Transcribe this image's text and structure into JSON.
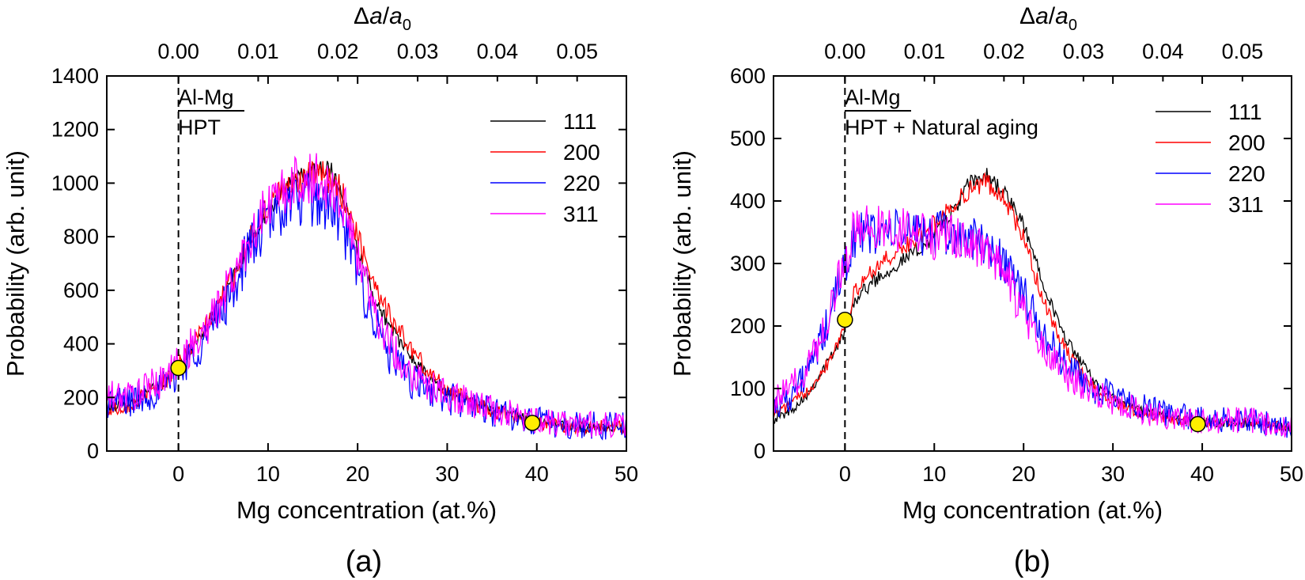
{
  "chart_data": [
    {
      "type": "line",
      "panel_label": "(a)",
      "xlabel": "Mg concentration (at.%)",
      "ylabel": "Probability (arb. unit)",
      "top_xlabel": "Δa/a0",
      "top_xlabel_parts": {
        "delta": "Δ",
        "a": "a",
        "slash": "/",
        "a0": "a",
        "sub": "0"
      },
      "xlim": [
        -8,
        50
      ],
      "ylim": [
        0,
        1400
      ],
      "xticks": [
        0,
        10,
        20,
        30,
        40,
        50
      ],
      "xtick_labels": [
        "0",
        "10",
        "20",
        "30",
        "40",
        "50"
      ],
      "yticks": [
        0,
        200,
        400,
        600,
        800,
        1000,
        1200,
        1400
      ],
      "ytick_labels": [
        "0",
        "200",
        "400",
        "600",
        "800",
        "1000",
        "1200",
        "1400"
      ],
      "top_xticks": [
        0.0,
        8.9,
        17.8,
        26.7,
        35.6,
        44.5
      ],
      "top_xtick_labels": [
        "0.00",
        "0.01",
        "0.02",
        "0.03",
        "0.04",
        "0.05"
      ],
      "annotation_title": "Al-Mg",
      "annotation_sub": "HPT",
      "dashed_line_x": 0,
      "markers": [
        {
          "x": 0,
          "y": 310
        },
        {
          "x": 39.5,
          "y": 105
        }
      ],
      "legend_position": "top-right",
      "series": [
        {
          "name": "111",
          "color": "#000000",
          "noise": 25,
          "points": [
            [
              -8,
              160
            ],
            [
              -5,
              185
            ],
            [
              -2,
              250
            ],
            [
              0,
              320
            ],
            [
              3,
              450
            ],
            [
              6,
              640
            ],
            [
              8,
              780
            ],
            [
              10,
              900
            ],
            [
              12,
              990
            ],
            [
              14,
              1030
            ],
            [
              16,
              1060
            ],
            [
              17,
              1050
            ],
            [
              18,
              980
            ],
            [
              19,
              880
            ],
            [
              20,
              760
            ],
            [
              22,
              560
            ],
            [
              24,
              440
            ],
            [
              26,
              350
            ],
            [
              28,
              270
            ],
            [
              30,
              220
            ],
            [
              33,
              180
            ],
            [
              36,
              150
            ],
            [
              40,
              110
            ],
            [
              45,
              85
            ],
            [
              50,
              85
            ]
          ]
        },
        {
          "name": "200",
          "color": "#ff0000",
          "noise": 40,
          "points": [
            [
              -8,
              150
            ],
            [
              -5,
              180
            ],
            [
              -2,
              250
            ],
            [
              0,
              320
            ],
            [
              3,
              460
            ],
            [
              6,
              640
            ],
            [
              8,
              800
            ],
            [
              10,
              910
            ],
            [
              12,
              980
            ],
            [
              14,
              1020
            ],
            [
              16,
              1030
            ],
            [
              18,
              980
            ],
            [
              19,
              900
            ],
            [
              20,
              800
            ],
            [
              22,
              620
            ],
            [
              24,
              480
            ],
            [
              26,
              380
            ],
            [
              28,
              290
            ],
            [
              30,
              230
            ],
            [
              33,
              175
            ],
            [
              36,
              140
            ],
            [
              40,
              105
            ],
            [
              45,
              90
            ],
            [
              50,
              90
            ]
          ]
        },
        {
          "name": "220",
          "color": "#0000ff",
          "noise": 80,
          "points": [
            [
              -8,
              180
            ],
            [
              -5,
              190
            ],
            [
              -2,
              230
            ],
            [
              0,
              300
            ],
            [
              3,
              420
            ],
            [
              6,
              600
            ],
            [
              8,
              760
            ],
            [
              10,
              860
            ],
            [
              12,
              920
            ],
            [
              14,
              940
            ],
            [
              16,
              930
            ],
            [
              18,
              860
            ],
            [
              19,
              770
            ],
            [
              20,
              660
            ],
            [
              22,
              470
            ],
            [
              24,
              330
            ],
            [
              26,
              260
            ],
            [
              28,
              230
            ],
            [
              30,
              200
            ],
            [
              33,
              170
            ],
            [
              36,
              140
            ],
            [
              40,
              110
            ],
            [
              45,
              95
            ],
            [
              50,
              95
            ]
          ]
        },
        {
          "name": "311",
          "color": "#ff00ff",
          "noise": 75,
          "points": [
            [
              -8,
              200
            ],
            [
              -5,
              210
            ],
            [
              -2,
              260
            ],
            [
              0,
              330
            ],
            [
              3,
              450
            ],
            [
              6,
              640
            ],
            [
              8,
              800
            ],
            [
              10,
              910
            ],
            [
              12,
              980
            ],
            [
              14,
              1010
            ],
            [
              16,
              1010
            ],
            [
              18,
              950
            ],
            [
              19,
              850
            ],
            [
              20,
              740
            ],
            [
              22,
              520
            ],
            [
              24,
              370
            ],
            [
              26,
              290
            ],
            [
              28,
              240
            ],
            [
              30,
              210
            ],
            [
              33,
              175
            ],
            [
              36,
              145
            ],
            [
              40,
              115
            ],
            [
              45,
              100
            ],
            [
              50,
              100
            ]
          ]
        }
      ]
    },
    {
      "type": "line",
      "panel_label": "(b)",
      "xlabel": "Mg concentration (at.%)",
      "ylabel": "Probability (arb. unit)",
      "top_xlabel": "Δa/a0",
      "top_xlabel_parts": {
        "delta": "Δ",
        "a": "a",
        "slash": "/",
        "a0": "a",
        "sub": "0"
      },
      "xlim": [
        -8,
        50
      ],
      "ylim": [
        0,
        600
      ],
      "xticks": [
        0,
        10,
        20,
        30,
        40,
        50
      ],
      "xtick_labels": [
        "0",
        "10",
        "20",
        "30",
        "40",
        "50"
      ],
      "yticks": [
        0,
        100,
        200,
        300,
        400,
        500,
        600
      ],
      "ytick_labels": [
        "0",
        "100",
        "200",
        "300",
        "400",
        "500",
        "600"
      ],
      "top_xticks": [
        0.0,
        8.9,
        17.8,
        26.7,
        35.6,
        44.5
      ],
      "top_xtick_labels": [
        "0.00",
        "0.01",
        "0.02",
        "0.03",
        "0.04",
        "0.05"
      ],
      "annotation_title": "Al-Mg",
      "annotation_sub": "HPT + Natural aging",
      "dashed_line_x": 0,
      "markers": [
        {
          "x": 0,
          "y": 210
        },
        {
          "x": 39.5,
          "y": 43
        }
      ],
      "legend_position": "top-right",
      "series": [
        {
          "name": "111",
          "color": "#000000",
          "noise": 10,
          "points": [
            [
              -8,
              50
            ],
            [
              -6,
              65
            ],
            [
              -4,
              95
            ],
            [
              -2,
              140
            ],
            [
              0,
              190
            ],
            [
              1,
              240
            ],
            [
              3,
              270
            ],
            [
              6,
              300
            ],
            [
              9,
              330
            ],
            [
              12,
              380
            ],
            [
              14,
              430
            ],
            [
              16,
              440
            ],
            [
              18,
              410
            ],
            [
              20,
              360
            ],
            [
              22,
              280
            ],
            [
              24,
              200
            ],
            [
              26,
              150
            ],
            [
              28,
              110
            ],
            [
              30,
              85
            ],
            [
              33,
              65
            ],
            [
              36,
              55
            ],
            [
              40,
              45
            ],
            [
              45,
              45
            ],
            [
              50,
              35
            ]
          ]
        },
        {
          "name": "200",
          "color": "#ff0000",
          "noise": 12,
          "points": [
            [
              -8,
              60
            ],
            [
              -6,
              75
            ],
            [
              -4,
              100
            ],
            [
              -2,
              140
            ],
            [
              0,
              200
            ],
            [
              1,
              250
            ],
            [
              3,
              290
            ],
            [
              6,
              320
            ],
            [
              9,
              350
            ],
            [
              12,
              390
            ],
            [
              14,
              420
            ],
            [
              16,
              430
            ],
            [
              18,
              400
            ],
            [
              20,
              340
            ],
            [
              22,
              250
            ],
            [
              24,
              180
            ],
            [
              26,
              135
            ],
            [
              28,
              100
            ],
            [
              30,
              80
            ],
            [
              33,
              60
            ],
            [
              36,
              52
            ],
            [
              40,
              45
            ],
            [
              45,
              45
            ],
            [
              50,
              40
            ]
          ]
        },
        {
          "name": "220",
          "color": "#0000ff",
          "noise": 30,
          "points": [
            [
              -8,
              70
            ],
            [
              -6,
              90
            ],
            [
              -4,
              130
            ],
            [
              -2,
              200
            ],
            [
              0,
              300
            ],
            [
              1,
              340
            ],
            [
              3,
              350
            ],
            [
              6,
              350
            ],
            [
              9,
              350
            ],
            [
              12,
              345
            ],
            [
              14,
              340
            ],
            [
              16,
              330
            ],
            [
              18,
              300
            ],
            [
              20,
              250
            ],
            [
              22,
              190
            ],
            [
              24,
              150
            ],
            [
              26,
              120
            ],
            [
              28,
              100
            ],
            [
              30,
              85
            ],
            [
              33,
              70
            ],
            [
              36,
              60
            ],
            [
              40,
              50
            ],
            [
              45,
              50
            ],
            [
              50,
              40
            ]
          ]
        },
        {
          "name": "311",
          "color": "#ff00ff",
          "noise": 30,
          "points": [
            [
              -8,
              80
            ],
            [
              -6,
              100
            ],
            [
              -4,
              140
            ],
            [
              -2,
              210
            ],
            [
              0,
              310
            ],
            [
              1,
              350
            ],
            [
              3,
              360
            ],
            [
              6,
              355
            ],
            [
              9,
              345
            ],
            [
              12,
              340
            ],
            [
              14,
              335
            ],
            [
              16,
              320
            ],
            [
              18,
              280
            ],
            [
              20,
              220
            ],
            [
              22,
              170
            ],
            [
              24,
              130
            ],
            [
              26,
              110
            ],
            [
              28,
              95
            ],
            [
              30,
              80
            ],
            [
              33,
              65
            ],
            [
              36,
              55
            ],
            [
              40,
              48
            ],
            [
              45,
              50
            ],
            [
              50,
              40
            ]
          ]
        }
      ]
    }
  ]
}
